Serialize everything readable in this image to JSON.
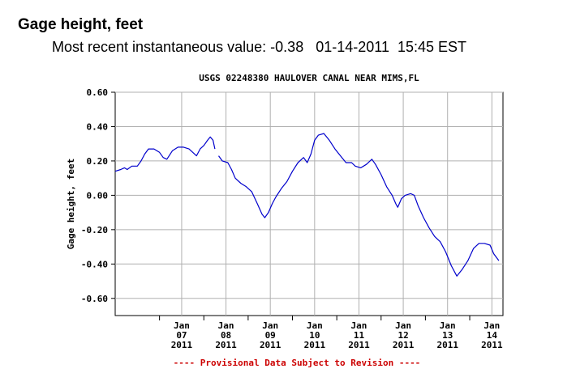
{
  "header": {
    "title": "Gage height, feet",
    "recent_label": "Most recent instantaneous value:",
    "recent_value": "-0.38",
    "recent_date": "01-14-2011",
    "recent_time": "15:45 EST"
  },
  "chart_data": {
    "type": "line",
    "title": "USGS 02248380 HAULOVER CANAL NEAR MIMS,FL",
    "ylabel": "Gage height, feet",
    "xlabel": "",
    "ylim": [
      -0.7,
      0.6
    ],
    "y_ticks": [
      "0.60",
      "0.40",
      "0.20",
      "0.00",
      "-0.20",
      "-0.40",
      "-0.60"
    ],
    "y_tick_values": [
      0.6,
      0.4,
      0.2,
      0.0,
      -0.2,
      -0.4,
      -0.6
    ],
    "xlim": [
      "2011-01-06 00:00",
      "2011-01-14 18:00"
    ],
    "x_ticks": [
      {
        "month": "Jan",
        "day": "07",
        "year": "2011"
      },
      {
        "month": "Jan",
        "day": "08",
        "year": "2011"
      },
      {
        "month": "Jan",
        "day": "09",
        "year": "2011"
      },
      {
        "month": "Jan",
        "day": "10",
        "year": "2011"
      },
      {
        "month": "Jan",
        "day": "11",
        "year": "2011"
      },
      {
        "month": "Jan",
        "day": "12",
        "year": "2011"
      },
      {
        "month": "Jan",
        "day": "13",
        "year": "2011"
      },
      {
        "month": "Jan",
        "day": "14",
        "year": "2011"
      }
    ],
    "grid": true,
    "line_color": "#0000cc",
    "series": [
      {
        "segments": [
          [
            [
              "2011-01-06 00:00",
              0.14
            ],
            [
              "2011-01-06 03:00",
              0.15
            ],
            [
              "2011-01-06 05:00",
              0.16
            ],
            [
              "2011-01-06 06:30",
              0.15
            ],
            [
              "2011-01-06 09:00",
              0.17
            ],
            [
              "2011-01-06 12:00",
              0.17
            ],
            [
              "2011-01-06 14:00",
              0.2
            ],
            [
              "2011-01-06 16:00",
              0.24
            ],
            [
              "2011-01-06 18:00",
              0.27
            ],
            [
              "2011-01-06 21:00",
              0.27
            ],
            [
              "2011-01-07 00:00",
              0.25
            ],
            [
              "2011-01-07 02:00",
              0.22
            ],
            [
              "2011-01-07 04:00",
              0.21
            ],
            [
              "2011-01-07 07:00",
              0.26
            ],
            [
              "2011-01-07 10:00",
              0.28
            ],
            [
              "2011-01-07 13:00",
              0.28
            ],
            [
              "2011-01-07 16:00",
              0.27
            ],
            [
              "2011-01-07 18:00",
              0.25
            ],
            [
              "2011-01-07 20:00",
              0.23
            ],
            [
              "2011-01-07 22:00",
              0.27
            ],
            [
              "2011-01-08 00:00",
              0.29
            ],
            [
              "2011-01-08 02:00",
              0.32
            ],
            [
              "2011-01-08 03:30",
              0.34
            ],
            [
              "2011-01-08 05:00",
              0.32
            ],
            [
              "2011-01-08 06:00",
              0.27
            ]
          ],
          [
            [
              "2011-01-08 08:00",
              0.23
            ],
            [
              "2011-01-08 10:00",
              0.2
            ],
            [
              "2011-01-08 13:00",
              0.19
            ],
            [
              "2011-01-08 15:00",
              0.15
            ],
            [
              "2011-01-08 17:00",
              0.1
            ],
            [
              "2011-01-08 20:00",
              0.07
            ],
            [
              "2011-01-08 23:00",
              0.05
            ],
            [
              "2011-01-09 02:00",
              0.02
            ],
            [
              "2011-01-09 05:00",
              -0.05
            ],
            [
              "2011-01-09 07:30",
              -0.11
            ],
            [
              "2011-01-09 09:00",
              -0.13
            ],
            [
              "2011-01-09 11:00",
              -0.1
            ],
            [
              "2011-01-09 13:00",
              -0.05
            ],
            [
              "2011-01-09 15:00",
              -0.01
            ],
            [
              "2011-01-09 18:00",
              0.04
            ],
            [
              "2011-01-09 21:00",
              0.08
            ],
            [
              "2011-01-10 00:00",
              0.14
            ],
            [
              "2011-01-10 03:00",
              0.19
            ],
            [
              "2011-01-10 06:00",
              0.22
            ],
            [
              "2011-01-10 08:00",
              0.19
            ],
            [
              "2011-01-10 10:00",
              0.24
            ],
            [
              "2011-01-10 12:00",
              0.32
            ],
            [
              "2011-01-10 14:00",
              0.35
            ],
            [
              "2011-01-10 17:00",
              0.36
            ],
            [
              "2011-01-10 20:00",
              0.32
            ],
            [
              "2011-01-10 23:00",
              0.27
            ],
            [
              "2011-01-11 02:00",
              0.23
            ],
            [
              "2011-01-11 05:00",
              0.19
            ],
            [
              "2011-01-11 08:00",
              0.19
            ],
            [
              "2011-01-11 10:00",
              0.17
            ],
            [
              "2011-01-11 13:00",
              0.16
            ],
            [
              "2011-01-11 16:00",
              0.18
            ],
            [
              "2011-01-11 19:00",
              0.21
            ],
            [
              "2011-01-11 21:00",
              0.18
            ],
            [
              "2011-01-12 00:00",
              0.12
            ],
            [
              "2011-01-12 03:00",
              0.05
            ],
            [
              "2011-01-12 06:00",
              0.0
            ],
            [
              "2011-01-12 08:00",
              -0.05
            ],
            [
              "2011-01-12 09:00",
              -0.07
            ],
            [
              "2011-01-12 11:00",
              -0.02
            ],
            [
              "2011-01-12 13:00",
              0.0
            ],
            [
              "2011-01-12 16:00",
              0.01
            ],
            [
              "2011-01-12 18:00",
              0.0
            ],
            [
              "2011-01-12 20:00",
              -0.06
            ],
            [
              "2011-01-12 23:00",
              -0.13
            ],
            [
              "2011-01-13 02:00",
              -0.19
            ],
            [
              "2011-01-13 05:00",
              -0.24
            ],
            [
              "2011-01-13 08:00",
              -0.27
            ],
            [
              "2011-01-13 11:00",
              -0.33
            ],
            [
              "2011-01-13 14:00",
              -0.41
            ],
            [
              "2011-01-13 17:00",
              -0.47
            ],
            [
              "2011-01-13 20:00",
              -0.43
            ],
            [
              "2011-01-13 23:00",
              -0.38
            ],
            [
              "2011-01-14 02:00",
              -0.31
            ],
            [
              "2011-01-14 05:00",
              -0.28
            ],
            [
              "2011-01-14 08:00",
              -0.28
            ],
            [
              "2011-01-14 11:00",
              -0.29
            ],
            [
              "2011-01-14 13:00",
              -0.34
            ],
            [
              "2011-01-14 15:45",
              -0.38
            ]
          ]
        ]
      }
    ]
  },
  "footer": {
    "provisional": "---- Provisional Data Subject to Revision ----"
  },
  "colors": {
    "line": "#0000cc",
    "grid": "#b0b0b0",
    "provisional": "#cc0000"
  }
}
